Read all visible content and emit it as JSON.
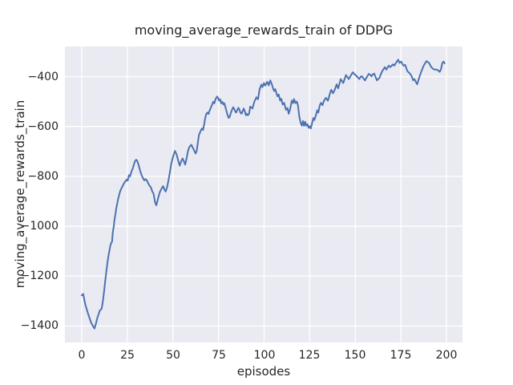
{
  "chart_data": {
    "type": "line",
    "title": "moving_average_rewards_train of DDPG",
    "xlabel": "episodes",
    "ylabel": "moving_average_rewards_train",
    "xlim": [
      -9.23,
      208.79
    ],
    "ylim": [
      -1466,
      -279.4
    ],
    "xticks": [
      0,
      25,
      50,
      75,
      100,
      125,
      150,
      175,
      200
    ],
    "yticks": [
      -400,
      -600,
      -800,
      -1000,
      -1200,
      -1400
    ],
    "xtick_labels": [
      "0",
      "25",
      "50",
      "75",
      "100",
      "125",
      "150",
      "175",
      "200"
    ],
    "ytick_labels": [
      "−400",
      "−600",
      "−800",
      "−1000",
      "−1200",
      "−1400"
    ],
    "grid": true,
    "legend": false,
    "colors": {
      "line": "#4c72b0",
      "plot_background": "#eaeaf2",
      "gridline": "#ffffff",
      "figure_background": "#ffffff",
      "text": "#262626"
    },
    "series": [
      {
        "name": "moving_average_rewards_train",
        "color": "#4c72b0",
        "points": [
          [
            0,
            -1277
          ],
          [
            0.8,
            -1271
          ],
          [
            2,
            -1315
          ],
          [
            3.5,
            -1352
          ],
          [
            5,
            -1384
          ],
          [
            6,
            -1398
          ],
          [
            7,
            -1410
          ],
          [
            7.8,
            -1390
          ],
          [
            8.7,
            -1363
          ],
          [
            10,
            -1337
          ],
          [
            10.9,
            -1331
          ],
          [
            11.6,
            -1300
          ],
          [
            12.2,
            -1262
          ],
          [
            13,
            -1210
          ],
          [
            13.6,
            -1175
          ],
          [
            14.3,
            -1135
          ],
          [
            15,
            -1105
          ],
          [
            15.6,
            -1080
          ],
          [
            16.1,
            -1068
          ],
          [
            16.6,
            -1062
          ],
          [
            17,
            -1025
          ],
          [
            17.6,
            -999
          ],
          [
            18,
            -972
          ],
          [
            18.5,
            -950
          ],
          [
            18.9,
            -929
          ],
          [
            19.5,
            -907
          ],
          [
            19.9,
            -891
          ],
          [
            20.5,
            -875
          ],
          [
            21.1,
            -859
          ],
          [
            21.7,
            -849
          ],
          [
            22.4,
            -838
          ],
          [
            23.2,
            -827
          ],
          [
            23.9,
            -820
          ],
          [
            24.6,
            -813
          ],
          [
            25.2,
            -817
          ],
          [
            25.9,
            -795
          ],
          [
            26.5,
            -800
          ],
          [
            27.3,
            -779
          ],
          [
            28,
            -768
          ],
          [
            28.6,
            -752
          ],
          [
            29.1,
            -741
          ],
          [
            29.9,
            -733
          ],
          [
            30.6,
            -741
          ],
          [
            31.3,
            -758
          ],
          [
            32.1,
            -779
          ],
          [
            32.8,
            -795
          ],
          [
            33.5,
            -806
          ],
          [
            34.3,
            -816
          ],
          [
            35,
            -811
          ],
          [
            35.7,
            -816
          ],
          [
            36.4,
            -827
          ],
          [
            37.2,
            -838
          ],
          [
            37.9,
            -843
          ],
          [
            38.6,
            -859
          ],
          [
            39.4,
            -870
          ],
          [
            40.2,
            -905
          ],
          [
            40.9,
            -916
          ],
          [
            41.6,
            -896
          ],
          [
            42.3,
            -876
          ],
          [
            43,
            -860
          ],
          [
            43.8,
            -849
          ],
          [
            44.6,
            -839
          ],
          [
            45.3,
            -852
          ],
          [
            46,
            -861
          ],
          [
            46.8,
            -843
          ],
          [
            47.5,
            -817
          ],
          [
            48.3,
            -785
          ],
          [
            49,
            -752
          ],
          [
            50,
            -723
          ],
          [
            51.1,
            -698
          ],
          [
            52,
            -712
          ],
          [
            52.7,
            -732
          ],
          [
            53.7,
            -757
          ],
          [
            54.5,
            -740
          ],
          [
            55.3,
            -728
          ],
          [
            56.1,
            -741
          ],
          [
            56.7,
            -753
          ],
          [
            57.5,
            -728
          ],
          [
            58.2,
            -700
          ],
          [
            58.9,
            -684
          ],
          [
            60.1,
            -673
          ],
          [
            61.2,
            -689
          ],
          [
            62.4,
            -708
          ],
          [
            63,
            -700
          ],
          [
            63.6,
            -668
          ],
          [
            64.2,
            -635
          ],
          [
            65.4,
            -614
          ],
          [
            66,
            -608
          ],
          [
            66.5,
            -614
          ],
          [
            67.1,
            -592
          ],
          [
            67.7,
            -566
          ],
          [
            68.3,
            -550
          ],
          [
            68.9,
            -544
          ],
          [
            69.5,
            -550
          ],
          [
            70,
            -539
          ],
          [
            70.6,
            -528
          ],
          [
            71.5,
            -512
          ],
          [
            72.1,
            -501
          ],
          [
            72.7,
            -507
          ],
          [
            73.3,
            -491
          ],
          [
            74.2,
            -480
          ],
          [
            74.7,
            -485
          ],
          [
            75.3,
            -496
          ],
          [
            75.9,
            -491
          ],
          [
            76.5,
            -507
          ],
          [
            77.1,
            -501
          ],
          [
            77.7,
            -512
          ],
          [
            78.2,
            -507
          ],
          [
            78.8,
            -523
          ],
          [
            79.4,
            -539
          ],
          [
            80,
            -555
          ],
          [
            80.6,
            -566
          ],
          [
            81.2,
            -560
          ],
          [
            81.8,
            -544
          ],
          [
            82.4,
            -533
          ],
          [
            83,
            -523
          ],
          [
            83.5,
            -528
          ],
          [
            84.1,
            -539
          ],
          [
            84.7,
            -544
          ],
          [
            85.3,
            -533
          ],
          [
            85.9,
            -525
          ],
          [
            86.5,
            -533
          ],
          [
            87,
            -544
          ],
          [
            87.6,
            -549
          ],
          [
            88.2,
            -539
          ],
          [
            88.8,
            -528
          ],
          [
            89.4,
            -539
          ],
          [
            90,
            -555
          ],
          [
            90.4,
            -549
          ],
          [
            91.1,
            -555
          ],
          [
            91.8,
            -548
          ],
          [
            92.4,
            -520
          ],
          [
            93.6,
            -528
          ],
          [
            94.7,
            -500
          ],
          [
            95.8,
            -483
          ],
          [
            96.6,
            -491
          ],
          [
            97.6,
            -449
          ],
          [
            98.5,
            -432
          ],
          [
            99.1,
            -442
          ],
          [
            99.9,
            -426
          ],
          [
            100.6,
            -436
          ],
          [
            101.7,
            -421
          ],
          [
            102.5,
            -435
          ],
          [
            103.4,
            -415
          ],
          [
            104.3,
            -432
          ],
          [
            104.9,
            -447
          ],
          [
            105.5,
            -458
          ],
          [
            106.1,
            -450
          ],
          [
            107.3,
            -479
          ],
          [
            108,
            -472
          ],
          [
            108.8,
            -496
          ],
          [
            109.4,
            -489
          ],
          [
            110.2,
            -512
          ],
          [
            111,
            -505
          ],
          [
            112,
            -533
          ],
          [
            112.8,
            -526
          ],
          [
            113.5,
            -549
          ],
          [
            114.2,
            -532
          ],
          [
            115.2,
            -496
          ],
          [
            115.9,
            -506
          ],
          [
            116.4,
            -490
          ],
          [
            117.2,
            -506
          ],
          [
            117.9,
            -500
          ],
          [
            118.5,
            -513
          ],
          [
            119.3,
            -560
          ],
          [
            120,
            -584
          ],
          [
            120.7,
            -597
          ],
          [
            121.3,
            -578
          ],
          [
            121.9,
            -597
          ],
          [
            122.5,
            -581
          ],
          [
            123.1,
            -597
          ],
          [
            123.8,
            -591
          ],
          [
            124.4,
            -605
          ],
          [
            125,
            -599
          ],
          [
            125.6,
            -608
          ],
          [
            126.2,
            -590
          ],
          [
            127,
            -566
          ],
          [
            127.6,
            -574
          ],
          [
            128.4,
            -555
          ],
          [
            129.1,
            -535
          ],
          [
            129.7,
            -544
          ],
          [
            130.5,
            -515
          ],
          [
            131.2,
            -505
          ],
          [
            132,
            -515
          ],
          [
            132.8,
            -497
          ],
          [
            133.9,
            -485
          ],
          [
            135,
            -497
          ],
          [
            136,
            -470
          ],
          [
            136.8,
            -453
          ],
          [
            137.8,
            -467
          ],
          [
            138.6,
            -455
          ],
          [
            139.8,
            -431
          ],
          [
            140.6,
            -447
          ],
          [
            142,
            -410
          ],
          [
            143.4,
            -426
          ],
          [
            144.9,
            -394
          ],
          [
            146.4,
            -410
          ],
          [
            147.5,
            -396
          ],
          [
            148.6,
            -383
          ],
          [
            149.5,
            -390
          ],
          [
            150.2,
            -394
          ],
          [
            151,
            -400
          ],
          [
            152.2,
            -410
          ],
          [
            153,
            -400
          ],
          [
            153.8,
            -399
          ],
          [
            154.5,
            -408
          ],
          [
            155.3,
            -415
          ],
          [
            156.3,
            -402
          ],
          [
            157.4,
            -389
          ],
          [
            158.2,
            -393
          ],
          [
            158.9,
            -399
          ],
          [
            159.6,
            -391
          ],
          [
            160.4,
            -388
          ],
          [
            161,
            -400
          ],
          [
            161.9,
            -415
          ],
          [
            162.6,
            -409
          ],
          [
            163.3,
            -405
          ],
          [
            164,
            -390
          ],
          [
            164.8,
            -378
          ],
          [
            165.5,
            -370
          ],
          [
            166.2,
            -362
          ],
          [
            167,
            -372
          ],
          [
            168.4,
            -356
          ],
          [
            169.2,
            -362
          ],
          [
            170.6,
            -351
          ],
          [
            171.4,
            -356
          ],
          [
            172.3,
            -345
          ],
          [
            173.5,
            -332
          ],
          [
            174.3,
            -345
          ],
          [
            175.1,
            -340
          ],
          [
            176.4,
            -356
          ],
          [
            177.3,
            -353
          ],
          [
            178.6,
            -378
          ],
          [
            180.1,
            -389
          ],
          [
            181,
            -400
          ],
          [
            181.7,
            -415
          ],
          [
            182.4,
            -410
          ],
          [
            183.1,
            -420
          ],
          [
            183.9,
            -431
          ],
          [
            185,
            -405
          ],
          [
            186,
            -383
          ],
          [
            187.5,
            -356
          ],
          [
            189,
            -338
          ],
          [
            190.4,
            -345
          ],
          [
            191.5,
            -360
          ],
          [
            192.5,
            -368
          ],
          [
            193.5,
            -372
          ],
          [
            194.8,
            -372
          ],
          [
            195.5,
            -376
          ],
          [
            196.3,
            -381
          ],
          [
            197,
            -370
          ],
          [
            197.7,
            -345
          ],
          [
            198.4,
            -340
          ],
          [
            199,
            -347
          ]
        ]
      }
    ]
  }
}
